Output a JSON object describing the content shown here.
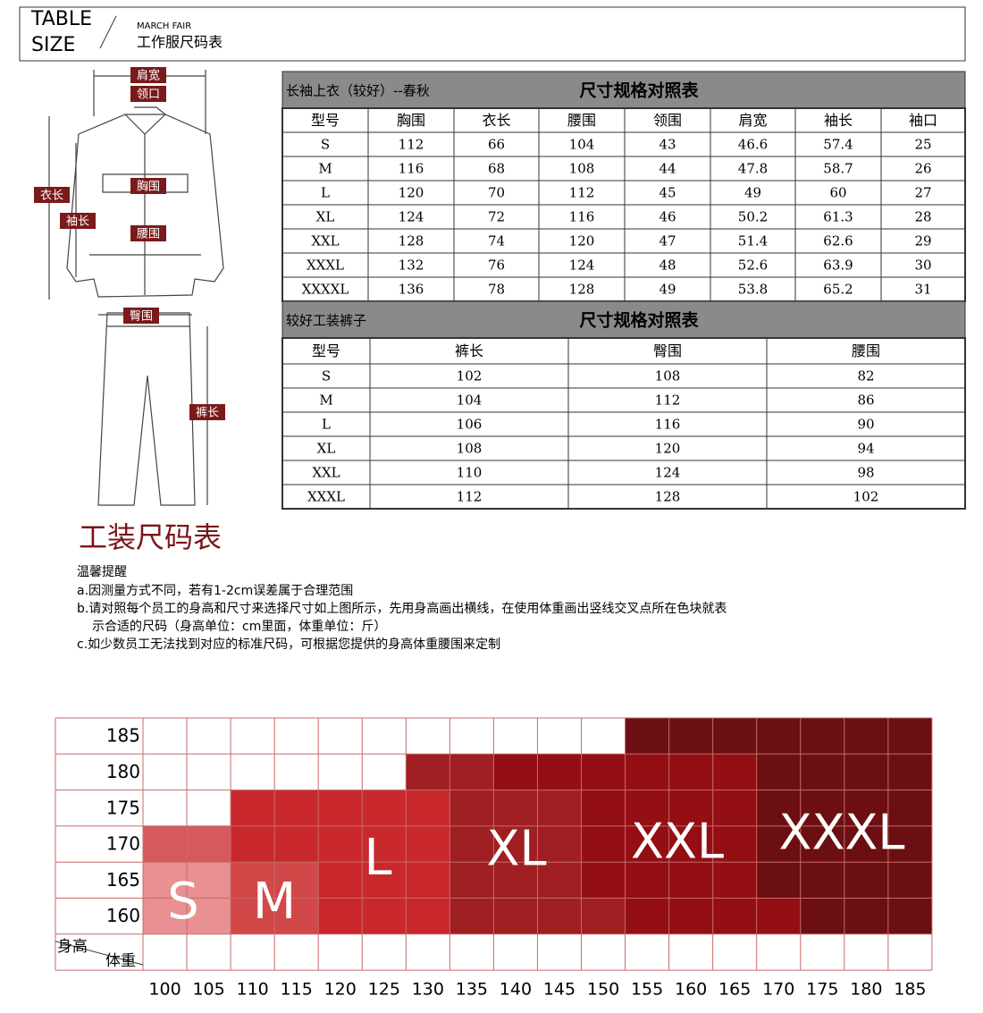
{
  "header": {
    "title_line1": "TABLE",
    "title_line2": "SIZE",
    "subtitle_en": "MARCH FAIR",
    "subtitle_cn": "工作服尺码表"
  },
  "figure": {
    "jacket_labels": [
      "肩宽",
      "领口",
      "衣长",
      "胸围",
      "袖长",
      "腰围"
    ],
    "pants_labels": [
      "臀围",
      "裤长"
    ]
  },
  "shirt_table": {
    "title_left": "长袖上衣（较好）--春秋",
    "title_right": "尺寸规格对照表",
    "header": [
      "型号",
      "胸围",
      "衣长",
      "腰围",
      "领围",
      "肩宽",
      "袖长",
      "袖口"
    ],
    "rows": [
      [
        "S",
        112,
        66,
        104,
        43,
        46.6,
        57.4,
        25
      ],
      [
        "M",
        116,
        68,
        108,
        44,
        47.8,
        58.7,
        26
      ],
      [
        "L",
        120,
        70,
        112,
        45,
        49,
        60,
        27
      ],
      [
        "XL",
        124,
        72,
        116,
        46,
        50.2,
        61.3,
        28
      ],
      [
        "XXL",
        128,
        74,
        120,
        47,
        51.4,
        62.6,
        29
      ],
      [
        "XXXL",
        132,
        76,
        124,
        48,
        52.6,
        63.9,
        30
      ],
      [
        "XXXXL",
        136,
        78,
        128,
        49,
        53.8,
        65.2,
        31
      ]
    ]
  },
  "pants_table": {
    "title_left": "较好工装裤子",
    "title_right": "尺寸规格对照表",
    "header": [
      "型号",
      "裤长",
      "臀围",
      "腰围"
    ],
    "rows": [
      [
        "S",
        102,
        108,
        82
      ],
      [
        "M",
        104,
        112,
        86
      ],
      [
        "L",
        106,
        116,
        90
      ],
      [
        "XL",
        108,
        120,
        94
      ],
      [
        "XXL",
        110,
        124,
        98
      ],
      [
        "XXXL",
        112,
        128,
        102
      ]
    ]
  },
  "section": {
    "title": "工装尺码表",
    "notes_heading": "温馨提醒",
    "notes": [
      "a.因测量方式不同，若有1-2cm误差属于合理范围",
      "b.请对照每个员工的身高和尺寸来选择尺寸如上图所示，先用身高画出横线，在使用体重画出竖线交叉点所在色块就表",
      "示合适的尺码（身高单位：cm里面，体重单位：斤）",
      "c.如少数员工无法找到对应的标准尺码，可根据您提供的身高体重腰围来定制"
    ]
  },
  "grid": {
    "heights": [
      185,
      180,
      175,
      170,
      165,
      160
    ],
    "height_label": "身高",
    "weight_label": "体重",
    "weights": [
      100,
      105,
      110,
      115,
      120,
      125,
      130,
      135,
      140,
      145,
      150,
      155,
      160,
      165,
      170,
      175,
      180,
      185
    ],
    "sizes": [
      "S",
      "M",
      "L",
      "XL",
      "XXL",
      "XXXL"
    ]
  }
}
